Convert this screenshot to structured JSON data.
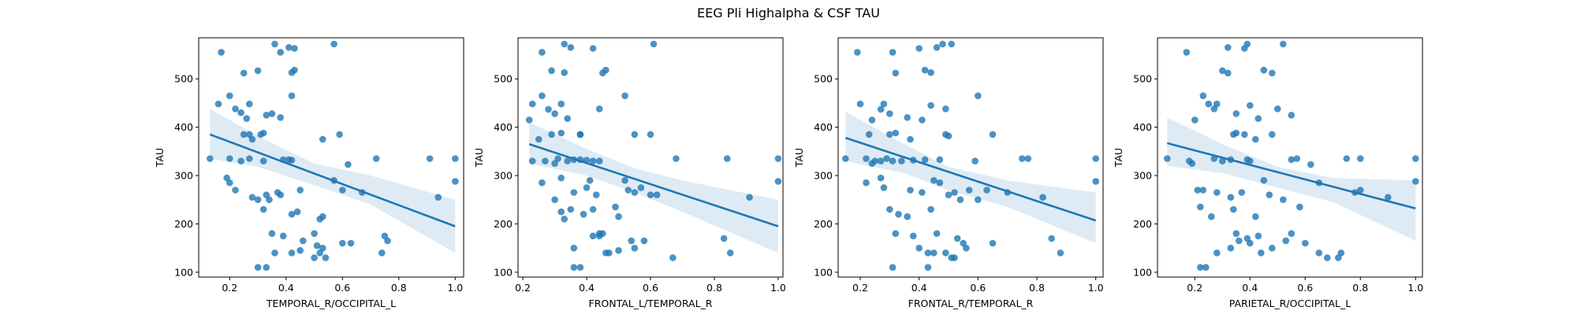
{
  "figure": {
    "suptitle": "EEG Pli Highalpha & CSF TAU"
  },
  "style": {
    "point_color": "#1f77b4",
    "line_color": "#1f77b4",
    "band_color": "#1f77b4"
  },
  "chart_data": [
    {
      "type": "scatter",
      "xlabel": "TEMPORAL_R/OCCIPITAL_L",
      "ylabel": "TAU",
      "xlim": [
        0.09,
        1.03
      ],
      "ylim": [
        90,
        585
      ],
      "xticks": [
        0.2,
        0.4,
        0.6,
        0.8,
        1.0
      ],
      "xtick_labels": [
        "0.2",
        "0.4",
        "0.6",
        "0.8",
        "1.0"
      ],
      "yticks": [
        100,
        200,
        300,
        400,
        500
      ],
      "ytick_labels": [
        "100",
        "200",
        "300",
        "400",
        "500"
      ],
      "regression": {
        "x": [
          0.13,
          1.0
        ],
        "y": [
          385,
          195
        ]
      },
      "ci_band": {
        "x": [
          0.13,
          0.3,
          0.5,
          0.7,
          1.0
        ],
        "lower": [
          335,
          318,
          280,
          240,
          140
        ],
        "upper": [
          438,
          382,
          325,
          300,
          250
        ]
      },
      "points": {
        "x": [
          0.17,
          0.36,
          0.38,
          0.41,
          0.43,
          0.57,
          0.25,
          0.3,
          0.42,
          0.43,
          0.42,
          0.16,
          0.2,
          0.22,
          0.24,
          0.27,
          0.26,
          0.33,
          0.35,
          0.38,
          0.31,
          0.32,
          0.27,
          0.28,
          0.25,
          0.13,
          0.2,
          0.24,
          0.27,
          0.32,
          0.39,
          0.41,
          0.42,
          0.53,
          0.59,
          0.62,
          0.72,
          0.91,
          1.0,
          0.19,
          0.2,
          0.22,
          0.33,
          0.37,
          0.38,
          0.44,
          0.45,
          0.52,
          0.53,
          0.57,
          0.6,
          0.67,
          0.32,
          0.3,
          0.34,
          0.28,
          0.42,
          0.46,
          0.5,
          0.51,
          0.53,
          0.6,
          0.63,
          0.75,
          0.76,
          0.94,
          1.0,
          0.35,
          0.39,
          0.45,
          0.5,
          0.54,
          0.52,
          0.42,
          0.36,
          0.74,
          0.3,
          0.33
        ],
        "y": [
          555,
          572,
          555,
          565,
          563,
          572,
          512,
          517,
          513,
          518,
          465,
          448,
          465,
          438,
          430,
          448,
          418,
          425,
          428,
          420,
          385,
          388,
          385,
          375,
          385,
          335,
          335,
          330,
          335,
          330,
          333,
          333,
          332,
          375,
          385,
          323,
          335,
          335,
          335,
          295,
          285,
          270,
          260,
          265,
          260,
          225,
          270,
          210,
          215,
          290,
          270,
          265,
          230,
          250,
          250,
          255,
          220,
          165,
          180,
          155,
          150,
          160,
          160,
          175,
          165,
          255,
          288,
          180,
          175,
          145,
          130,
          130,
          140,
          140,
          140,
          140,
          110,
          110
        ]
      }
    },
    {
      "type": "scatter",
      "xlabel": "FRONTAL_L/TEMPORAL_R",
      "ylabel": "TAU",
      "xlim": [
        0.185,
        1.015
      ],
      "ylim": [
        90,
        585
      ],
      "xticks": [
        0.2,
        0.4,
        0.6,
        0.8,
        1.0
      ],
      "xtick_labels": [
        "0.2",
        "0.4",
        "0.6",
        "0.8",
        "1.0"
      ],
      "yticks": [
        100,
        200,
        300,
        400,
        500
      ],
      "ytick_labels": [
        "100",
        "200",
        "300",
        "400",
        "500"
      ],
      "regression": {
        "x": [
          0.22,
          1.0
        ],
        "y": [
          365,
          195
        ]
      },
      "ci_band": {
        "x": [
          0.22,
          0.4,
          0.55,
          0.7,
          1.0
        ],
        "lower": [
          325,
          300,
          265,
          225,
          140
        ],
        "upper": [
          410,
          355,
          315,
          290,
          250
        ]
      },
      "points": {
        "x": [
          0.26,
          0.33,
          0.35,
          0.42,
          0.61,
          0.29,
          0.33,
          0.45,
          0.46,
          0.23,
          0.26,
          0.22,
          0.28,
          0.32,
          0.3,
          0.34,
          0.38,
          0.44,
          0.52,
          0.29,
          0.32,
          0.38,
          0.55,
          0.6,
          0.25,
          0.23,
          0.27,
          0.3,
          0.31,
          0.34,
          0.36,
          0.38,
          0.4,
          0.42,
          0.44,
          0.68,
          0.84,
          1.0,
          0.26,
          0.32,
          0.36,
          0.41,
          0.4,
          0.43,
          0.52,
          0.53,
          0.55,
          0.57,
          0.6,
          0.62,
          0.32,
          0.35,
          0.39,
          0.42,
          0.45,
          0.5,
          0.49,
          0.54,
          0.55,
          0.58,
          0.83,
          0.85,
          0.91,
          1.0,
          0.3,
          0.33,
          0.36,
          0.42,
          0.44,
          0.46,
          0.47,
          0.44,
          0.5,
          0.36,
          0.38,
          0.67
        ],
        "y": [
          555,
          572,
          565,
          563,
          572,
          517,
          513,
          512,
          518,
          448,
          465,
          415,
          437,
          448,
          428,
          418,
          385,
          438,
          465,
          385,
          388,
          385,
          385,
          385,
          375,
          330,
          330,
          325,
          335,
          330,
          333,
          333,
          332,
          330,
          330,
          335,
          335,
          335,
          285,
          295,
          265,
          290,
          275,
          260,
          290,
          270,
          265,
          275,
          260,
          260,
          225,
          230,
          220,
          230,
          180,
          215,
          235,
          165,
          150,
          165,
          170,
          140,
          255,
          288,
          250,
          210,
          150,
          175,
          175,
          140,
          140,
          180,
          145,
          110,
          110,
          130
        ]
      }
    },
    {
      "type": "scatter",
      "xlabel": "FRONTAL_R/TEMPORAL_R",
      "ylabel": "TAU",
      "xlim": [
        0.125,
        1.025
      ],
      "ylim": [
        90,
        585
      ],
      "xticks": [
        0.2,
        0.4,
        0.6,
        0.8,
        1.0
      ],
      "xtick_labels": [
        "0.2",
        "0.4",
        "0.6",
        "0.8",
        "1.0"
      ],
      "yticks": [
        100,
        200,
        300,
        400,
        500
      ],
      "ytick_labels": [
        "100",
        "200",
        "300",
        "400",
        "500"
      ],
      "regression": {
        "x": [
          0.15,
          1.0
        ],
        "y": [
          378,
          207
        ]
      },
      "ci_band": {
        "x": [
          0.15,
          0.35,
          0.5,
          0.7,
          1.0
        ],
        "lower": [
          330,
          305,
          270,
          235,
          160
        ],
        "upper": [
          432,
          365,
          318,
          290,
          265
        ]
      },
      "points": {
        "x": [
          0.19,
          0.31,
          0.4,
          0.46,
          0.48,
          0.51,
          0.32,
          0.42,
          0.44,
          0.44,
          0.2,
          0.24,
          0.27,
          0.28,
          0.3,
          0.36,
          0.41,
          0.49,
          0.6,
          0.23,
          0.3,
          0.32,
          0.37,
          0.49,
          0.5,
          0.65,
          0.15,
          0.22,
          0.24,
          0.25,
          0.27,
          0.29,
          0.31,
          0.34,
          0.38,
          0.42,
          0.47,
          0.59,
          0.75,
          0.77,
          1.0,
          0.22,
          0.27,
          0.37,
          0.41,
          0.45,
          0.47,
          0.5,
          0.52,
          0.54,
          0.57,
          0.6,
          0.63,
          0.7,
          0.82,
          0.28,
          0.3,
          0.33,
          0.36,
          0.44,
          0.46,
          0.53,
          0.55,
          0.56,
          0.65,
          0.85,
          0.88,
          1.0,
          0.32,
          0.38,
          0.4,
          0.43,
          0.45,
          0.49,
          0.51,
          0.52,
          0.31,
          0.43
        ],
        "y": [
          555,
          555,
          563,
          565,
          572,
          572,
          512,
          518,
          513,
          445,
          448,
          415,
          437,
          448,
          428,
          420,
          415,
          438,
          465,
          385,
          385,
          388,
          375,
          385,
          382,
          385,
          335,
          335,
          325,
          330,
          330,
          335,
          330,
          330,
          332,
          333,
          333,
          330,
          335,
          335,
          335,
          285,
          295,
          270,
          265,
          290,
          285,
          260,
          265,
          250,
          270,
          250,
          270,
          265,
          255,
          275,
          230,
          220,
          215,
          230,
          180,
          170,
          160,
          150,
          160,
          170,
          140,
          288,
          180,
          175,
          150,
          140,
          140,
          140,
          130,
          130,
          110,
          110
        ]
      }
    },
    {
      "type": "scatter",
      "xlabel": "PARIETAL_R/OCCIPITAL_L",
      "ylabel": "TAU",
      "xlim": [
        0.065,
        1.025
      ],
      "ylim": [
        90,
        585
      ],
      "xticks": [
        0.2,
        0.4,
        0.6,
        0.8,
        1.0
      ],
      "xtick_labels": [
        "0.2",
        "0.4",
        "0.6",
        "0.8",
        "1.0"
      ],
      "yticks": [
        100,
        200,
        300,
        400,
        500
      ],
      "ytick_labels": [
        "100",
        "200",
        "300",
        "400",
        "500"
      ],
      "regression": {
        "x": [
          0.1,
          1.0
        ],
        "y": [
          367,
          232
        ]
      },
      "ci_band": {
        "x": [
          0.1,
          0.3,
          0.5,
          0.7,
          1.0
        ],
        "lower": [
          320,
          305,
          275,
          245,
          165
        ],
        "upper": [
          420,
          365,
          318,
          295,
          290
        ]
      },
      "points": {
        "x": [
          0.17,
          0.32,
          0.38,
          0.39,
          0.52,
          0.3,
          0.32,
          0.45,
          0.48,
          0.23,
          0.25,
          0.27,
          0.28,
          0.2,
          0.35,
          0.4,
          0.43,
          0.5,
          0.55,
          0.34,
          0.35,
          0.38,
          0.48,
          0.1,
          0.18,
          0.19,
          0.27,
          0.3,
          0.33,
          0.39,
          0.4,
          0.42,
          0.55,
          0.57,
          0.62,
          0.75,
          0.8,
          1.0,
          0.21,
          0.23,
          0.28,
          0.33,
          0.37,
          0.45,
          0.47,
          0.52,
          0.58,
          0.65,
          0.78,
          0.8,
          0.9,
          1.0,
          0.22,
          0.26,
          0.34,
          0.42,
          0.35,
          0.43,
          0.55,
          0.39,
          0.4,
          0.48,
          0.53,
          0.6,
          0.65,
          0.68,
          0.72,
          0.73,
          0.22,
          0.24,
          0.28,
          0.33,
          0.44,
          0.36
        ],
        "y": [
          555,
          565,
          563,
          572,
          572,
          517,
          512,
          518,
          512,
          465,
          448,
          438,
          448,
          415,
          428,
          445,
          418,
          438,
          425,
          385,
          388,
          385,
          385,
          335,
          330,
          325,
          335,
          330,
          333,
          333,
          330,
          375,
          333,
          335,
          323,
          335,
          335,
          335,
          270,
          270,
          265,
          255,
          265,
          290,
          260,
          250,
          235,
          285,
          265,
          270,
          255,
          288,
          235,
          215,
          230,
          215,
          180,
          175,
          180,
          170,
          160,
          150,
          165,
          160,
          140,
          130,
          130,
          140,
          110,
          110,
          140,
          150,
          140,
          165
        ]
      }
    }
  ]
}
